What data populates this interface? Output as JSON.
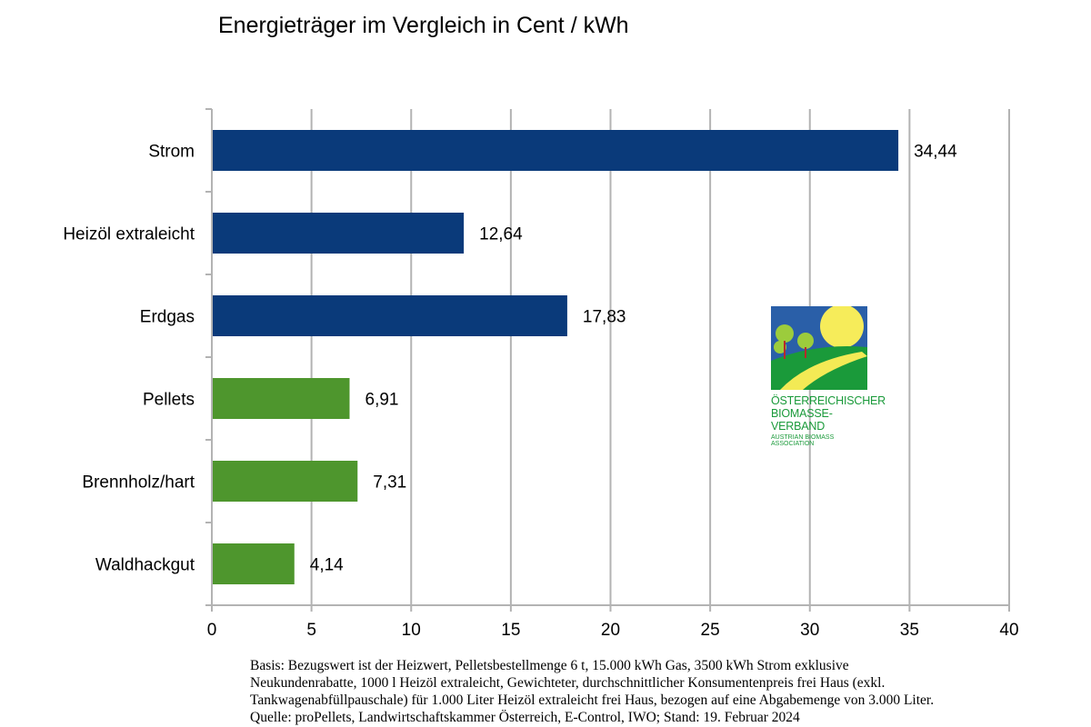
{
  "chart_data": {
    "type": "bar",
    "orientation": "horizontal",
    "title": "Energieträger im Vergleich in Cent / kWh",
    "categories": [
      "Strom",
      "Heizöl extraleicht",
      "Erdgas",
      "Pellets",
      "Brennholz/hart",
      "Waldhackgut"
    ],
    "values": [
      34.44,
      12.64,
      17.83,
      6.91,
      7.31,
      4.14
    ],
    "value_labels": [
      "34,44",
      "12,64",
      "17,83",
      "6,91",
      "7,31",
      "4,14"
    ],
    "colors": [
      "#0a3a7a",
      "#0a3a7a",
      "#0a3a7a",
      "#4e962d",
      "#4e962d",
      "#4e962d"
    ],
    "xlim": [
      0,
      40
    ],
    "xticks": [
      0,
      5,
      10,
      15,
      20,
      25,
      30,
      35,
      40
    ],
    "grid": true,
    "xlabel": "",
    "ylabel": ""
  },
  "footnote": [
    "Basis: Bezugswert ist der Heizwert, Pelletsbestellmenge 6 t, 15.000 kWh Gas, 3500 kWh Strom exklusive",
    "Neukundenrabatte, 1000 l Heizöl extraleicht, Gewichteter, durchschnittlicher Konsumentenpreis frei Haus (exkl.",
    "Tankwagenabfüllpauschale) für 1.000 Liter Heizöl extraleicht frei Haus, bezogen auf eine Abgabemenge von 3.000 Liter.",
    "Quelle: proPellets, Landwirtschaftskammer Österreich, E-Control, IWO; Stand: 19. Februar 2024"
  ],
  "logo": {
    "line1": "Österreichischer",
    "line2": "Biomasse-Verband",
    "line3": "Austrian Biomass Association"
  }
}
